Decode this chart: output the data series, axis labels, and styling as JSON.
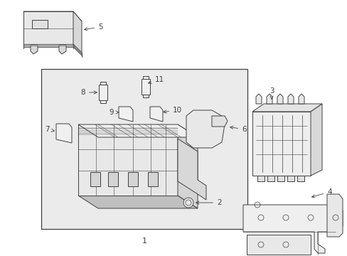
{
  "bg_color": "#ffffff",
  "lc": "#404040",
  "lw": 0.7,
  "box1_fill": "#ececec",
  "part_fill": "#f8f8f8",
  "shadow_fill": "#d8d8d8"
}
